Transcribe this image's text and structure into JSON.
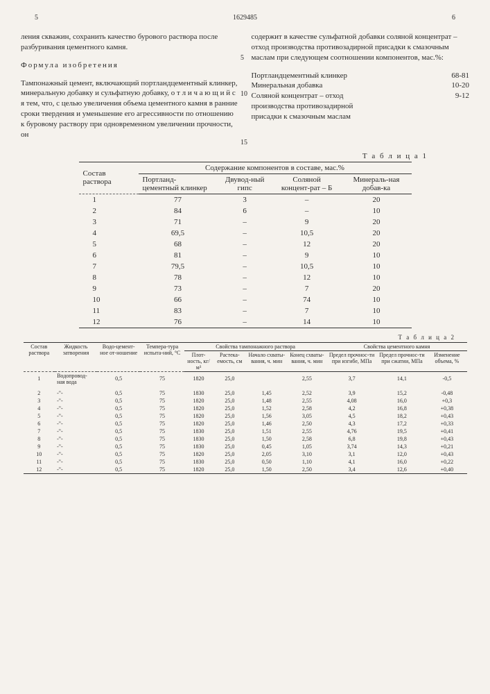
{
  "doc_number": "1629485",
  "col_left_num": "5",
  "col_right_num": "6",
  "side_5": "5",
  "side_10": "10",
  "side_15": "15",
  "left_p1": "ления скважин, сохранить качество бурового раствора после разбуривания цементного камня.",
  "formula_title": "Формула изобретения",
  "left_p2": "Тампонажный цемент, включающий портландцементный клинкер, минеральную добавку и сульфатную добавку, о т л и ч а ю щ и й с я  тем, что, с целью увеличения объема цементного камня в ранние сроки твердения и уменьшение его агрессивности по отношению к буровому раствору при одновременном увеличении прочности, он",
  "right_p1": "содержит в качестве сульфатной добавки соляной концентрат – отход производства противозадирной присадки к смазочным маслам при следующем соотношении компонентов, мас.%:",
  "comp": {
    "c1_label": "Портландцементный клинкер",
    "c1_val": "68-81",
    "c2_label": "Минеральная добавка",
    "c2_val": "10-20",
    "c3_label": "Соляной концентрат – отход производства противозадирной присадки к смазочным маслам",
    "c3_val": "9-12"
  },
  "t1": {
    "caption": "Т а б л и ц а 1",
    "h_compo": "Состав раствора",
    "h_content": "Содержание компонентов в составе, мас.%",
    "h_c1": "Портланд-цементный клинкер",
    "h_c2": "Двувод-ный гипс",
    "h_c3": "Соляной концент-рат – Б",
    "h_c4": "Минераль-ная добав-ка",
    "rows": [
      [
        "1",
        "77",
        "3",
        "–",
        "20"
      ],
      [
        "2",
        "84",
        "6",
        "–",
        "10"
      ],
      [
        "3",
        "71",
        "–",
        "9",
        "20"
      ],
      [
        "4",
        "69,5",
        "–",
        "10,5",
        "20"
      ],
      [
        "5",
        "68",
        "–",
        "12",
        "20"
      ],
      [
        "6",
        "81",
        "–",
        "9",
        "10"
      ],
      [
        "7",
        "79,5",
        "–",
        "10,5",
        "10"
      ],
      [
        "8",
        "78",
        "–",
        "12",
        "10"
      ],
      [
        "9",
        "73",
        "–",
        "7",
        "20"
      ],
      [
        "10",
        "66",
        "–",
        "74",
        "10"
      ],
      [
        "11",
        "83",
        "–",
        "7",
        "10"
      ],
      [
        "12",
        "76",
        "–",
        "14",
        "10"
      ]
    ]
  },
  "t2": {
    "caption": "Т а б л и ц а 2",
    "h_compo": "Состав раствора",
    "h_liquid": "Жидкость затворения",
    "h_wc": "Водо-цемент-ное от-ношение",
    "h_temp": "Темпера-тура испыта-ний, °С",
    "h_grp1": "Свойства тампонажного раствора",
    "h_grp2": "Свойства цементного камня",
    "h_dens": "Плот-ность, кг/м³",
    "h_flow": "Растека-емость, см",
    "h_start": "Начало схваты-вания, ч. мин",
    "h_end": "Конец схваты-вания, ч. мин",
    "h_bend": "Предел прочнос-ти при изгибе, МПа",
    "h_comp": "Предел прочнос-ти при сжатии, МПа",
    "h_vol": "Изменение объема, %",
    "liquid": "Водопровод-ная вода",
    "ditto": "-\"-",
    "rows": [
      [
        "1",
        "0,5",
        "75",
        "1820",
        "25,0",
        "",
        "2,55",
        "3,7",
        "14,1",
        "-0,5"
      ],
      [
        "2",
        "0,5",
        "75",
        "1830",
        "25,0",
        "1,45",
        "2,52",
        "3,9",
        "15,2",
        "-0,48"
      ],
      [
        "3",
        "0,5",
        "75",
        "1820",
        "25,0",
        "1,48",
        "2,55",
        "4,08",
        "16,0",
        "+0,3"
      ],
      [
        "4",
        "0,5",
        "75",
        "1820",
        "25,0",
        "1,52",
        "2,58",
        "4,2",
        "16,8",
        "+0,38"
      ],
      [
        "5",
        "0,5",
        "75",
        "1820",
        "25,0",
        "1,56",
        "3,05",
        "4,5",
        "18,2",
        "+0,43"
      ],
      [
        "6",
        "0,5",
        "75",
        "1820",
        "25,0",
        "1,46",
        "2,50",
        "4,3",
        "17,2",
        "+0,33"
      ],
      [
        "7",
        "0,5",
        "75",
        "1830",
        "25,0",
        "1,51",
        "2,55",
        "4,76",
        "19,5",
        "+0,41"
      ],
      [
        "8",
        "0,5",
        "75",
        "1830",
        "25,0",
        "1,50",
        "2,58",
        "6,8",
        "19,8",
        "+0,43"
      ],
      [
        "9",
        "0,5",
        "75",
        "1830",
        "25,0",
        "0,45",
        "1,05",
        "3,74",
        "14,3",
        "+0,21"
      ],
      [
        "10",
        "0,5",
        "75",
        "1820",
        "25,0",
        "2,05",
        "3,10",
        "3,1",
        "12,0",
        "+0,43"
      ],
      [
        "11",
        "0,5",
        "75",
        "1830",
        "25,0",
        "0,50",
        "1,10",
        "4,1",
        "16,0",
        "+0,22"
      ],
      [
        "12",
        "0,5",
        "75",
        "1820",
        "25,0",
        "1,50",
        "2,50",
        "3,4",
        "12,6",
        "+0,40"
      ]
    ]
  }
}
